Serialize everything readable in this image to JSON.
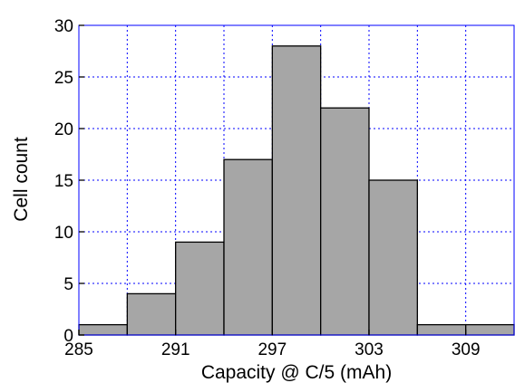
{
  "chart_data": {
    "type": "bar",
    "subtype": "histogram",
    "title": "",
    "xlabel": "Capacity @ C/5 (mAh)",
    "ylabel": "Cell count",
    "bin_width": 3,
    "bins": [
      {
        "start": 285,
        "end": 288,
        "count": 1
      },
      {
        "start": 288,
        "end": 291,
        "count": 4
      },
      {
        "start": 291,
        "end": 294,
        "count": 9
      },
      {
        "start": 294,
        "end": 297,
        "count": 17
      },
      {
        "start": 297,
        "end": 300,
        "count": 28
      },
      {
        "start": 300,
        "end": 303,
        "count": 22
      },
      {
        "start": 303,
        "end": 306,
        "count": 15
      },
      {
        "start": 306,
        "end": 309,
        "count": 1
      },
      {
        "start": 309,
        "end": 312,
        "count": 1
      }
    ],
    "xlim": [
      285,
      312
    ],
    "ylim": [
      0,
      30
    ],
    "xticks": [
      285,
      291,
      297,
      303,
      309
    ],
    "yticks": [
      0,
      5,
      10,
      15,
      20,
      25,
      30
    ],
    "grid": true,
    "grid_style": "dotted",
    "colors": {
      "bar_fill": "#a6a6a6",
      "bar_stroke": "#000000",
      "grid": "#0000ff",
      "frame": "#0000ff"
    }
  }
}
